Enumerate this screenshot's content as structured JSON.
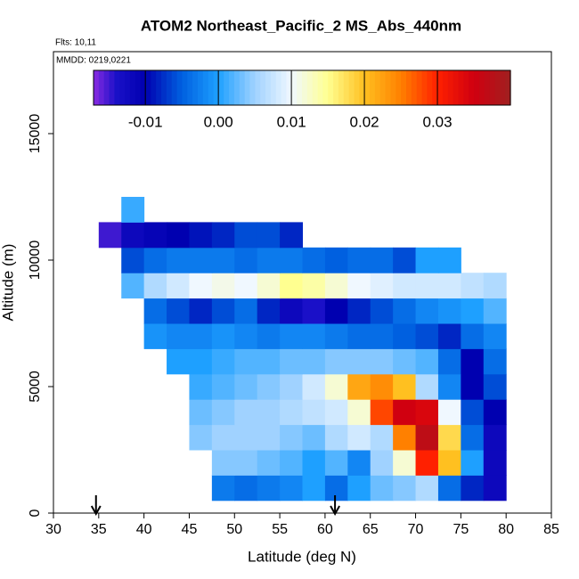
{
  "chart_data": {
    "type": "heatmap",
    "title": "ATOM2 Northeast_Pacific_2 MS_Abs_440nm",
    "subtitle": "Flts: 10,11",
    "annotation": "MMDD: 0219,0221",
    "xlabel": "Latitude (deg N)",
    "ylabel": "Altitude (m)",
    "xlim": [
      30,
      85
    ],
    "xticks": [
      30,
      35,
      40,
      45,
      50,
      55,
      60,
      65,
      70,
      75,
      80,
      85
    ],
    "ylim": [
      0,
      18240
    ],
    "yticks": [
      0,
      5000,
      10000,
      15000
    ],
    "x_edges": [
      35,
      37.5,
      40,
      42.5,
      45,
      47.5,
      50,
      52.5,
      55,
      57.5,
      60,
      62.5,
      65,
      67.5,
      70,
      72.5,
      75,
      77.5,
      80
    ],
    "y_edges": [
      500,
      1500,
      2500,
      3500,
      4500,
      5500,
      6500,
      7500,
      8500,
      9500,
      10500,
      11500,
      12500
    ],
    "z": [
      [
        null,
        null,
        null,
        null,
        null,
        -0.003,
        -0.004,
        -0.003,
        -0.002,
        0.0,
        -0.004,
        0.0,
        0.003,
        0.004,
        0.006,
        -0.004,
        -0.008,
        -0.012
      ],
      [
        null,
        null,
        null,
        null,
        null,
        0.004,
        0.004,
        0.003,
        0.002,
        0.0,
        0.002,
        -0.002,
        0.005,
        0.012,
        0.03,
        0.02,
        0.0,
        -0.012
      ],
      [
        null,
        null,
        null,
        null,
        0.004,
        0.005,
        0.005,
        0.005,
        0.004,
        0.003,
        0.006,
        0.008,
        0.006,
        0.025,
        0.037,
        0.018,
        -0.004,
        -0.012
      ],
      [
        null,
        null,
        null,
        null,
        0.003,
        0.004,
        0.005,
        0.005,
        0.006,
        0.007,
        0.008,
        0.012,
        0.028,
        0.035,
        0.034,
        0.01,
        -0.006,
        -0.01
      ],
      [
        null,
        null,
        null,
        null,
        0.001,
        0.002,
        0.003,
        0.004,
        0.005,
        0.008,
        0.012,
        0.022,
        0.024,
        0.02,
        0.006,
        -0.002,
        -0.01,
        -0.006
      ],
      [
        null,
        null,
        null,
        0.0,
        0.0,
        0.001,
        0.002,
        0.002,
        0.003,
        0.003,
        0.004,
        0.004,
        0.004,
        0.003,
        0.002,
        -0.004,
        -0.01,
        -0.004
      ],
      [
        null,
        null,
        -0.001,
        -0.002,
        -0.002,
        -0.001,
        -0.002,
        -0.003,
        -0.002,
        -0.002,
        -0.003,
        -0.004,
        -0.004,
        -0.005,
        -0.006,
        -0.008,
        -0.004,
        -0.002
      ],
      [
        null,
        null,
        -0.004,
        -0.006,
        -0.008,
        -0.006,
        -0.004,
        -0.008,
        -0.012,
        -0.014,
        -0.01,
        -0.008,
        -0.006,
        -0.004,
        -0.002,
        -0.001,
        0.0,
        0.002
      ],
      [
        null,
        0.002,
        0.006,
        0.008,
        0.01,
        0.011,
        0.01,
        0.012,
        0.015,
        0.014,
        0.012,
        0.01,
        0.009,
        0.008,
        0.008,
        0.008,
        0.007,
        0.006
      ],
      [
        null,
        -0.006,
        -0.004,
        -0.003,
        -0.003,
        -0.003,
        -0.004,
        -0.003,
        -0.003,
        -0.004,
        -0.005,
        -0.004,
        -0.004,
        -0.006,
        0.0,
        0.0,
        null,
        null
      ],
      [
        -0.015,
        -0.012,
        -0.011,
        -0.01,
        -0.009,
        -0.008,
        -0.006,
        -0.006,
        -0.008,
        null,
        null,
        null,
        null,
        null,
        null,
        null,
        null,
        null
      ],
      [
        null,
        0.001,
        null,
        null,
        null,
        null,
        null,
        null,
        null,
        null,
        null,
        null,
        null,
        null,
        null,
        null,
        null,
        null
      ]
    ],
    "zlim": [
      -0.0171,
      0.04
    ],
    "zticks": [
      -0.01,
      {
        "value": 0,
        "label": "0.00"
      },
      0.01,
      0.02,
      0.03
    ],
    "colorscale": [
      [
        -0.0171,
        "#8a2be2"
      ],
      [
        -0.014,
        "#1a10c8"
      ],
      [
        -0.01,
        "#0000b0"
      ],
      [
        -0.005,
        "#0060e0"
      ],
      [
        0.0,
        "#1ea0ff"
      ],
      [
        0.005,
        "#a0d2ff"
      ],
      [
        0.01,
        "#f0f8ff"
      ],
      [
        0.015,
        "#ffff90"
      ],
      [
        0.02,
        "#ffc020"
      ],
      [
        0.025,
        "#ff8000"
      ],
      [
        0.03,
        "#ff2000"
      ],
      [
        0.035,
        "#d00010"
      ],
      [
        0.04,
        "#a02020"
      ]
    ],
    "arrows": [
      34.7,
      61.1
    ]
  }
}
